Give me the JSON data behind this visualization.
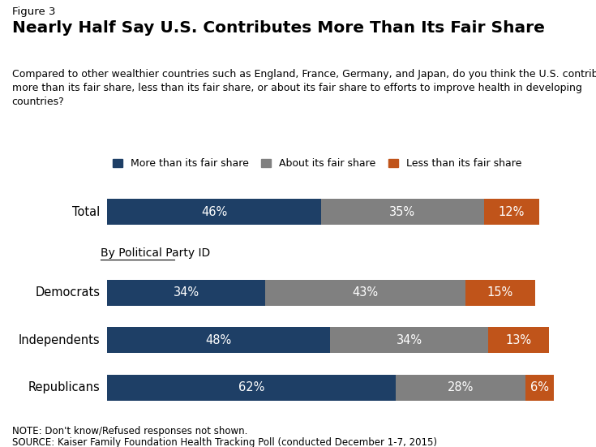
{
  "figure_label": "Figure 3",
  "title": "Nearly Half Say U.S. Contributes More Than Its Fair Share",
  "question_text": "Compared to other wealthier countries such as England, France, Germany, and Japan, do you think the U.S. contributes\nmore than its fair share, less than its fair share, or about its fair share to efforts to improve health in developing\ncountries?",
  "categories": [
    "Total",
    "Democrats",
    "Independents",
    "Republicans"
  ],
  "more_than": [
    46,
    34,
    48,
    62
  ],
  "about": [
    35,
    43,
    34,
    28
  ],
  "less_than": [
    12,
    15,
    13,
    6
  ],
  "colors": {
    "more_than": "#1e3f66",
    "about": "#808080",
    "less_than": "#c0541a"
  },
  "legend_labels": [
    "More than its fair share",
    "About its fair share",
    "Less than its fair share"
  ],
  "section_label": "By Political Party ID",
  "note": "NOTE: Don't know/Refused responses not shown.",
  "source": "SOURCE: Kaiser Family Foundation Health Tracking Poll (conducted December 1-7, 2015)",
  "background_color": "#ffffff",
  "bar_height": 0.55
}
